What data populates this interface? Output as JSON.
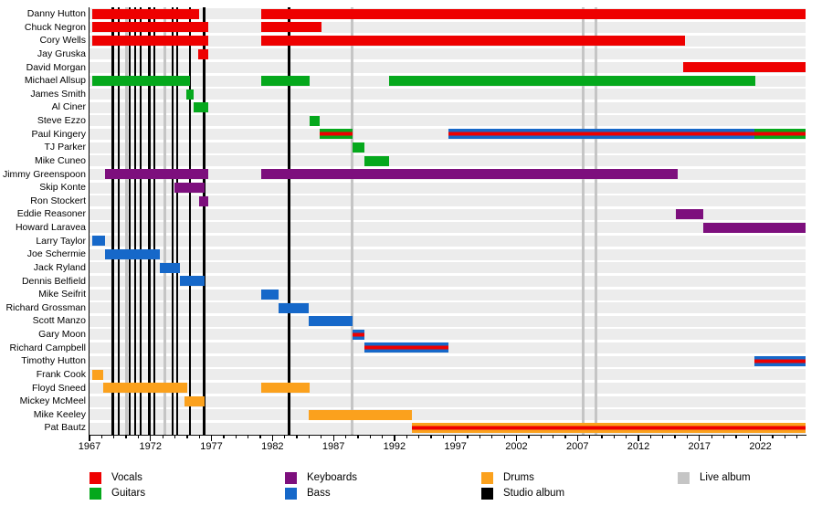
{
  "chart_data": {
    "type": "timeline",
    "title": "",
    "x_axis": {
      "start": 1967,
      "end": 2025.7,
      "major_ticks": [
        1967,
        1972,
        1977,
        1982,
        1987,
        1992,
        1997,
        2002,
        2007,
        2012,
        2017,
        2022
      ],
      "minor_tick_interval": 1
    },
    "colors": {
      "vocals": "#ee0000",
      "guitars": "#05a81c",
      "keyboards": "#7d0f7d",
      "bass": "#1668c9",
      "drums": "#fba11d",
      "studio_album": "#000000",
      "live_album": "#c5c5c5",
      "row_stripe": "#ececec"
    },
    "legend": [
      {
        "label": "Vocals",
        "color_key": "vocals"
      },
      {
        "label": "Guitars",
        "color_key": "guitars"
      },
      {
        "label": "Keyboards",
        "color_key": "keyboards"
      },
      {
        "label": "Bass",
        "color_key": "bass"
      },
      {
        "label": "Drums",
        "color_key": "drums"
      },
      {
        "label": "Studio album",
        "color_key": "studio_album"
      },
      {
        "label": "Live album",
        "color_key": "live_album"
      }
    ],
    "albums": {
      "studio": [
        1968.9,
        1969.4,
        1970.3,
        1970.75,
        1971.2,
        1971.9,
        1972.3,
        1973.8,
        1974.2,
        1975.25,
        1976.4,
        1983.35
      ],
      "live": [
        1970.0,
        1973.2,
        1988.55,
        2007.45,
        2008.5
      ]
    },
    "members": [
      {
        "name": "Danny Hutton",
        "bars": [
          {
            "start": 1967.25,
            "end": 1975.95,
            "roles": [
              "vocals"
            ]
          },
          {
            "start": 1981.1,
            "end": 2025.7,
            "roles": [
              "vocals"
            ]
          }
        ]
      },
      {
        "name": "Chuck Negron",
        "bars": [
          {
            "start": 1967.25,
            "end": 1976.75,
            "roles": [
              "vocals"
            ]
          },
          {
            "start": 1981.1,
            "end": 1986.0,
            "roles": [
              "vocals"
            ]
          }
        ]
      },
      {
        "name": "Cory Wells",
        "bars": [
          {
            "start": 1967.25,
            "end": 1976.75,
            "roles": [
              "vocals"
            ]
          },
          {
            "start": 1981.1,
            "end": 2015.8,
            "roles": [
              "vocals"
            ]
          }
        ]
      },
      {
        "name": "Jay Gruska",
        "bars": [
          {
            "start": 1975.9,
            "end": 1976.75,
            "roles": [
              "vocals"
            ]
          }
        ]
      },
      {
        "name": "David Morgan",
        "bars": [
          {
            "start": 2015.65,
            "end": 2025.7,
            "roles": [
              "vocals"
            ]
          }
        ]
      },
      {
        "name": "Michael Allsup",
        "bars": [
          {
            "start": 1967.25,
            "end": 1975.2,
            "roles": [
              "guitars"
            ]
          },
          {
            "start": 1981.1,
            "end": 1985.05,
            "roles": [
              "guitars"
            ]
          },
          {
            "start": 1991.55,
            "end": 2021.6,
            "roles": [
              "guitars"
            ]
          }
        ]
      },
      {
        "name": "James Smith",
        "bars": [
          {
            "start": 1974.95,
            "end": 1975.5,
            "roles": [
              "guitars"
            ]
          }
        ]
      },
      {
        "name": "Al Ciner",
        "bars": [
          {
            "start": 1975.55,
            "end": 1976.7,
            "roles": [
              "guitars"
            ]
          }
        ]
      },
      {
        "name": "Steve Ezzo",
        "bars": [
          {
            "start": 1985.05,
            "end": 1985.9,
            "roles": [
              "guitars"
            ]
          }
        ]
      },
      {
        "name": "Paul Kingery",
        "bars": [
          {
            "start": 1985.9,
            "end": 1988.55,
            "roles": [
              "guitars",
              "vocals"
            ]
          },
          {
            "start": 1996.4,
            "end": 2021.5,
            "roles": [
              "bass",
              "vocals"
            ]
          },
          {
            "start": 2021.5,
            "end": 2025.7,
            "roles": [
              "guitars",
              "vocals"
            ]
          }
        ]
      },
      {
        "name": "TJ Parker",
        "bars": [
          {
            "start": 1988.55,
            "end": 1989.5,
            "roles": [
              "guitars"
            ]
          }
        ]
      },
      {
        "name": "Mike Cuneo",
        "bars": [
          {
            "start": 1989.5,
            "end": 1991.55,
            "roles": [
              "guitars"
            ]
          }
        ]
      },
      {
        "name": "Jimmy Greenspoon",
        "bars": [
          {
            "start": 1968.3,
            "end": 1976.75,
            "roles": [
              "keyboards"
            ]
          },
          {
            "start": 1981.1,
            "end": 2015.2,
            "roles": [
              "keyboards"
            ]
          }
        ]
      },
      {
        "name": "Skip Konte",
        "bars": [
          {
            "start": 1974.0,
            "end": 1976.4,
            "roles": [
              "keyboards"
            ]
          }
        ]
      },
      {
        "name": "Ron Stockert",
        "bars": [
          {
            "start": 1975.95,
            "end": 1976.75,
            "roles": [
              "keyboards"
            ]
          }
        ]
      },
      {
        "name": "Eddie Reasoner",
        "bars": [
          {
            "start": 2015.1,
            "end": 2017.3,
            "roles": [
              "keyboards"
            ]
          }
        ]
      },
      {
        "name": "Howard Laravea",
        "bars": [
          {
            "start": 2017.3,
            "end": 2025.7,
            "roles": [
              "keyboards"
            ]
          }
        ]
      },
      {
        "name": "Larry Taylor",
        "bars": [
          {
            "start": 1967.25,
            "end": 1968.25,
            "roles": [
              "bass"
            ]
          }
        ]
      },
      {
        "name": "Joe Schermie",
        "bars": [
          {
            "start": 1968.3,
            "end": 1972.75,
            "roles": [
              "bass"
            ]
          }
        ]
      },
      {
        "name": "Jack Ryland",
        "bars": [
          {
            "start": 1972.75,
            "end": 1974.4,
            "roles": [
              "bass"
            ]
          }
        ]
      },
      {
        "name": "Dennis Belfield",
        "bars": [
          {
            "start": 1974.4,
            "end": 1976.4,
            "roles": [
              "bass"
            ]
          }
        ]
      },
      {
        "name": "Mike Seifrit",
        "bars": [
          {
            "start": 1981.1,
            "end": 1982.5,
            "roles": [
              "bass"
            ]
          }
        ]
      },
      {
        "name": "Richard Grossman",
        "bars": [
          {
            "start": 1982.5,
            "end": 1985.0,
            "roles": [
              "bass"
            ]
          }
        ]
      },
      {
        "name": "Scott Manzo",
        "bars": [
          {
            "start": 1985.0,
            "end": 1988.55,
            "roles": [
              "bass"
            ]
          }
        ]
      },
      {
        "name": "Gary Moon",
        "bars": [
          {
            "start": 1988.55,
            "end": 1989.55,
            "roles": [
              "bass",
              "vocals"
            ]
          }
        ]
      },
      {
        "name": "Richard Campbell",
        "bars": [
          {
            "start": 1989.55,
            "end": 1996.4,
            "roles": [
              "bass",
              "vocals"
            ]
          }
        ]
      },
      {
        "name": "Timothy Hutton",
        "bars": [
          {
            "start": 2021.5,
            "end": 2025.7,
            "roles": [
              "bass",
              "vocals"
            ]
          }
        ]
      },
      {
        "name": "Frank Cook",
        "bars": [
          {
            "start": 1967.25,
            "end": 1968.1,
            "roles": [
              "drums"
            ]
          }
        ]
      },
      {
        "name": "Floyd Sneed",
        "bars": [
          {
            "start": 1968.15,
            "end": 1975.0,
            "roles": [
              "drums"
            ]
          },
          {
            "start": 1981.1,
            "end": 1985.05,
            "roles": [
              "drums"
            ]
          }
        ]
      },
      {
        "name": "Mickey McMeel",
        "bars": [
          {
            "start": 1974.75,
            "end": 1976.4,
            "roles": [
              "drums"
            ]
          }
        ]
      },
      {
        "name": "Mike Keeley",
        "bars": [
          {
            "start": 1985.0,
            "end": 1993.45,
            "roles": [
              "drums"
            ]
          }
        ]
      },
      {
        "name": "Pat Bautz",
        "bars": [
          {
            "start": 1993.45,
            "end": 2025.7,
            "roles": [
              "drums",
              "vocals"
            ]
          }
        ]
      }
    ]
  }
}
